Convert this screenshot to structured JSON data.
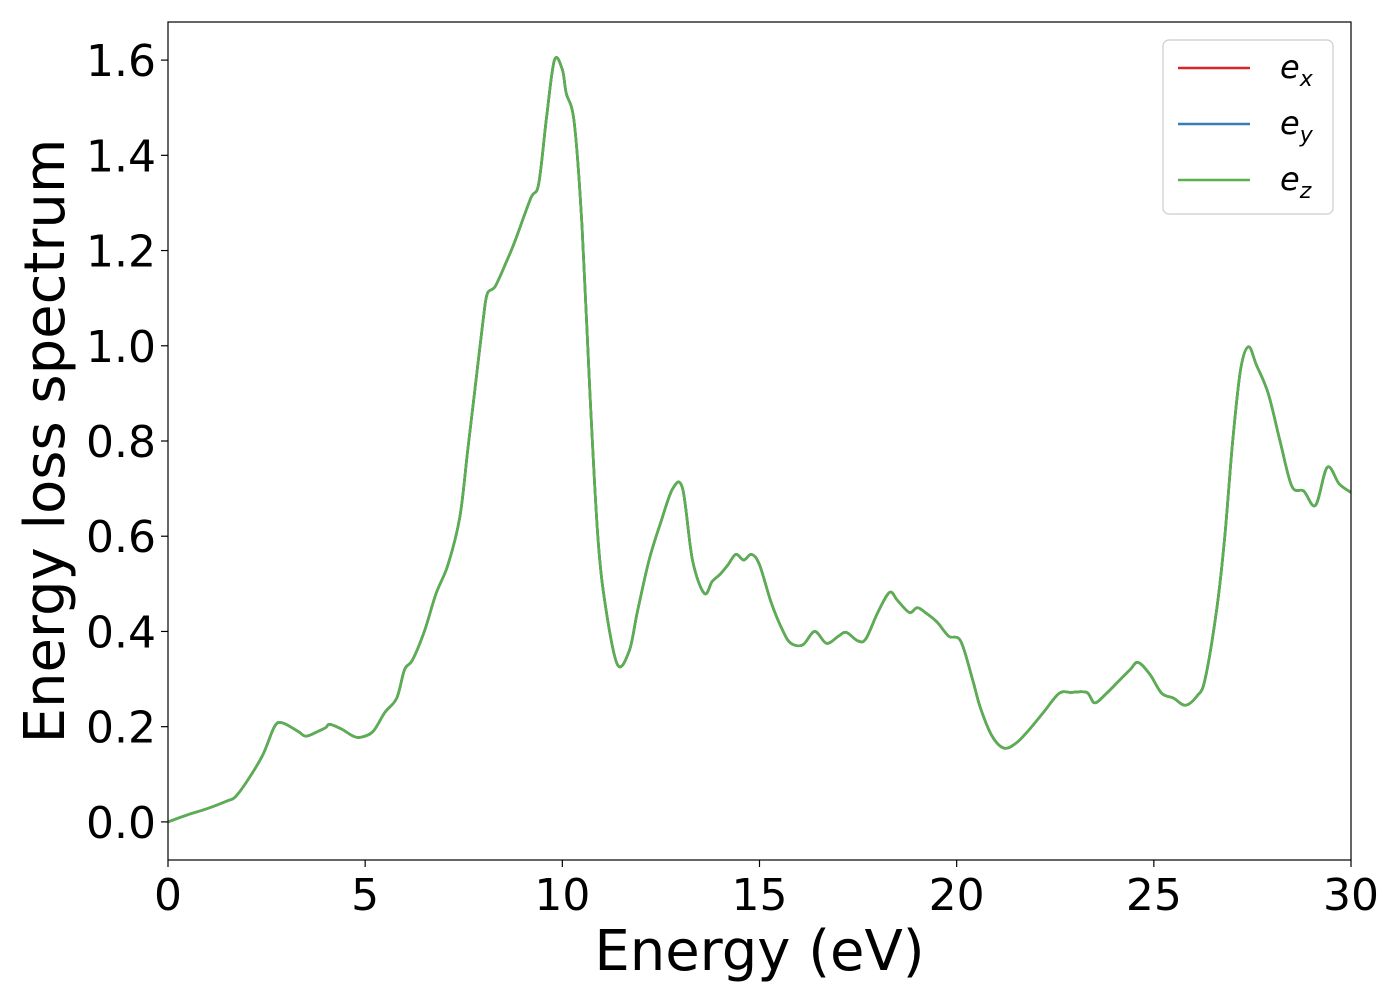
{
  "chart_data": {
    "type": "line",
    "title": "",
    "xlabel": "Energy (eV)",
    "ylabel": "Energy loss spectrum",
    "xlim": [
      0,
      30
    ],
    "ylim": [
      -0.08,
      1.68
    ],
    "xticks": [
      0,
      5,
      10,
      15,
      20,
      25,
      30
    ],
    "xtick_labels": [
      "0",
      "5",
      "10",
      "15",
      "20",
      "25",
      "30"
    ],
    "yticks": [
      0.0,
      0.2,
      0.4,
      0.6,
      0.8,
      1.0,
      1.2,
      1.4,
      1.6
    ],
    "ytick_labels": [
      "0.0",
      "0.2",
      "0.4",
      "0.6",
      "0.8",
      "1.0",
      "1.2",
      "1.4",
      "1.6"
    ],
    "grid": false,
    "legend_position": "top-right",
    "series": [
      {
        "name": "e_x",
        "base": "e",
        "sub": "x",
        "color": "#d62728",
        "x": [
          0,
          0.5,
          1.0,
          1.5,
          1.7,
          2.0,
          2.4,
          2.7,
          2.9,
          3.3,
          3.5,
          3.8,
          4.0,
          4.1,
          4.4,
          4.7,
          4.9,
          5.2,
          5.5,
          5.8,
          6.0,
          6.2,
          6.5,
          6.8,
          7.1,
          7.4,
          7.6,
          7.8,
          8.0,
          8.1,
          8.3,
          8.6,
          8.8,
          9.2,
          9.4,
          9.6,
          9.8,
          10.0,
          10.1,
          10.3,
          10.5,
          10.7,
          10.9,
          11.1,
          11.4,
          11.7,
          11.9,
          12.2,
          12.5,
          12.8,
          13.05,
          13.3,
          13.6,
          13.8,
          14.0,
          14.2,
          14.4,
          14.6,
          14.8,
          15.0,
          15.3,
          15.6,
          15.8,
          16.1,
          16.4,
          16.7,
          17.0,
          17.2,
          17.5,
          17.7,
          18.0,
          18.3,
          18.5,
          18.8,
          19.0,
          19.2,
          19.5,
          19.8,
          20.1,
          20.4,
          20.6,
          20.9,
          21.2,
          21.5,
          21.8,
          22.2,
          22.6,
          22.9,
          23.3,
          23.5,
          23.8,
          24.1,
          24.4,
          24.6,
          24.9,
          25.2,
          25.5,
          25.8,
          26.1,
          26.3,
          26.6,
          26.8,
          27.0,
          27.2,
          27.4,
          27.6,
          27.9,
          28.2,
          28.5,
          28.8,
          29.1,
          29.4,
          29.7,
          30.0
        ],
        "y": [
          0.0,
          0.015,
          0.028,
          0.044,
          0.052,
          0.085,
          0.14,
          0.2,
          0.208,
          0.19,
          0.18,
          0.19,
          0.198,
          0.205,
          0.195,
          0.18,
          0.178,
          0.19,
          0.23,
          0.26,
          0.32,
          0.34,
          0.4,
          0.48,
          0.54,
          0.64,
          0.78,
          0.92,
          1.06,
          1.11,
          1.125,
          1.18,
          1.22,
          1.31,
          1.34,
          1.48,
          1.6,
          1.58,
          1.53,
          1.47,
          1.25,
          0.9,
          0.6,
          0.45,
          0.33,
          0.36,
          0.44,
          0.55,
          0.63,
          0.7,
          0.7,
          0.55,
          0.48,
          0.505,
          0.52,
          0.54,
          0.562,
          0.55,
          0.562,
          0.54,
          0.46,
          0.4,
          0.375,
          0.372,
          0.4,
          0.375,
          0.39,
          0.398,
          0.38,
          0.385,
          0.44,
          0.482,
          0.465,
          0.44,
          0.45,
          0.44,
          0.42,
          0.39,
          0.38,
          0.3,
          0.24,
          0.18,
          0.155,
          0.165,
          0.19,
          0.23,
          0.27,
          0.272,
          0.272,
          0.25,
          0.27,
          0.295,
          0.32,
          0.335,
          0.31,
          0.27,
          0.26,
          0.245,
          0.265,
          0.3,
          0.45,
          0.6,
          0.8,
          0.95,
          0.998,
          0.96,
          0.9,
          0.8,
          0.705,
          0.695,
          0.665,
          0.745,
          0.71,
          0.692
        ]
      },
      {
        "name": "e_y",
        "base": "e",
        "sub": "y",
        "color": "#377eb8",
        "x": [
          0,
          0.5,
          1.0,
          1.5,
          1.7,
          2.0,
          2.4,
          2.7,
          2.9,
          3.3,
          3.5,
          3.8,
          4.0,
          4.1,
          4.4,
          4.7,
          4.9,
          5.2,
          5.5,
          5.8,
          6.0,
          6.2,
          6.5,
          6.8,
          7.1,
          7.4,
          7.6,
          7.8,
          8.0,
          8.1,
          8.3,
          8.6,
          8.8,
          9.2,
          9.4,
          9.6,
          9.8,
          10.0,
          10.1,
          10.3,
          10.5,
          10.7,
          10.9,
          11.1,
          11.4,
          11.7,
          11.9,
          12.2,
          12.5,
          12.8,
          13.05,
          13.3,
          13.6,
          13.8,
          14.0,
          14.2,
          14.4,
          14.6,
          14.8,
          15.0,
          15.3,
          15.6,
          15.8,
          16.1,
          16.4,
          16.7,
          17.0,
          17.2,
          17.5,
          17.7,
          18.0,
          18.3,
          18.5,
          18.8,
          19.0,
          19.2,
          19.5,
          19.8,
          20.1,
          20.4,
          20.6,
          20.9,
          21.2,
          21.5,
          21.8,
          22.2,
          22.6,
          22.9,
          23.3,
          23.5,
          23.8,
          24.1,
          24.4,
          24.6,
          24.9,
          25.2,
          25.5,
          25.8,
          26.1,
          26.3,
          26.6,
          26.8,
          27.0,
          27.2,
          27.4,
          27.6,
          27.9,
          28.2,
          28.5,
          28.8,
          29.1,
          29.4,
          29.7,
          30.0
        ],
        "y": [
          0.0,
          0.015,
          0.028,
          0.044,
          0.052,
          0.085,
          0.14,
          0.2,
          0.208,
          0.19,
          0.18,
          0.19,
          0.198,
          0.205,
          0.195,
          0.18,
          0.178,
          0.19,
          0.23,
          0.26,
          0.32,
          0.34,
          0.4,
          0.48,
          0.54,
          0.64,
          0.78,
          0.92,
          1.06,
          1.11,
          1.125,
          1.18,
          1.22,
          1.31,
          1.34,
          1.48,
          1.6,
          1.58,
          1.53,
          1.47,
          1.25,
          0.9,
          0.6,
          0.45,
          0.33,
          0.36,
          0.44,
          0.55,
          0.63,
          0.7,
          0.7,
          0.55,
          0.48,
          0.505,
          0.52,
          0.54,
          0.562,
          0.55,
          0.562,
          0.54,
          0.46,
          0.4,
          0.375,
          0.372,
          0.4,
          0.375,
          0.39,
          0.398,
          0.38,
          0.385,
          0.44,
          0.482,
          0.465,
          0.44,
          0.45,
          0.44,
          0.42,
          0.39,
          0.38,
          0.3,
          0.24,
          0.18,
          0.155,
          0.165,
          0.19,
          0.23,
          0.27,
          0.272,
          0.272,
          0.25,
          0.27,
          0.295,
          0.32,
          0.335,
          0.31,
          0.27,
          0.26,
          0.245,
          0.265,
          0.3,
          0.45,
          0.6,
          0.8,
          0.95,
          0.998,
          0.96,
          0.9,
          0.8,
          0.705,
          0.695,
          0.665,
          0.745,
          0.71,
          0.692
        ]
      },
      {
        "name": "e_z",
        "base": "e",
        "sub": "z",
        "color": "#5ab04f",
        "x": [
          0,
          0.5,
          1.0,
          1.5,
          1.7,
          2.0,
          2.4,
          2.7,
          2.9,
          3.3,
          3.5,
          3.8,
          4.0,
          4.1,
          4.4,
          4.7,
          4.9,
          5.2,
          5.5,
          5.8,
          6.0,
          6.2,
          6.5,
          6.8,
          7.1,
          7.4,
          7.6,
          7.8,
          8.0,
          8.1,
          8.3,
          8.6,
          8.8,
          9.2,
          9.4,
          9.6,
          9.8,
          10.0,
          10.1,
          10.3,
          10.5,
          10.7,
          10.9,
          11.1,
          11.4,
          11.7,
          11.9,
          12.2,
          12.5,
          12.8,
          13.05,
          13.3,
          13.6,
          13.8,
          14.0,
          14.2,
          14.4,
          14.6,
          14.8,
          15.0,
          15.3,
          15.6,
          15.8,
          16.1,
          16.4,
          16.7,
          17.0,
          17.2,
          17.5,
          17.7,
          18.0,
          18.3,
          18.5,
          18.8,
          19.0,
          19.2,
          19.5,
          19.8,
          20.1,
          20.4,
          20.6,
          20.9,
          21.2,
          21.5,
          21.8,
          22.2,
          22.6,
          22.9,
          23.3,
          23.5,
          23.8,
          24.1,
          24.4,
          24.6,
          24.9,
          25.2,
          25.5,
          25.8,
          26.1,
          26.3,
          26.6,
          26.8,
          27.0,
          27.2,
          27.4,
          27.6,
          27.9,
          28.2,
          28.5,
          28.8,
          29.1,
          29.4,
          29.7,
          30.0
        ],
        "y": [
          0.0,
          0.015,
          0.028,
          0.044,
          0.052,
          0.085,
          0.14,
          0.2,
          0.208,
          0.19,
          0.18,
          0.19,
          0.198,
          0.205,
          0.195,
          0.18,
          0.178,
          0.19,
          0.23,
          0.26,
          0.32,
          0.34,
          0.4,
          0.48,
          0.54,
          0.64,
          0.78,
          0.92,
          1.06,
          1.11,
          1.125,
          1.18,
          1.22,
          1.31,
          1.34,
          1.48,
          1.6,
          1.58,
          1.53,
          1.47,
          1.25,
          0.9,
          0.6,
          0.45,
          0.33,
          0.36,
          0.44,
          0.55,
          0.63,
          0.7,
          0.7,
          0.55,
          0.48,
          0.505,
          0.52,
          0.54,
          0.562,
          0.55,
          0.562,
          0.54,
          0.46,
          0.4,
          0.375,
          0.372,
          0.4,
          0.375,
          0.39,
          0.398,
          0.38,
          0.385,
          0.44,
          0.482,
          0.465,
          0.44,
          0.45,
          0.44,
          0.42,
          0.39,
          0.38,
          0.3,
          0.24,
          0.18,
          0.155,
          0.165,
          0.19,
          0.23,
          0.27,
          0.272,
          0.272,
          0.25,
          0.27,
          0.295,
          0.32,
          0.335,
          0.31,
          0.27,
          0.26,
          0.245,
          0.265,
          0.3,
          0.45,
          0.6,
          0.8,
          0.95,
          0.998,
          0.96,
          0.9,
          0.8,
          0.705,
          0.695,
          0.665,
          0.745,
          0.71,
          0.692
        ]
      }
    ]
  }
}
